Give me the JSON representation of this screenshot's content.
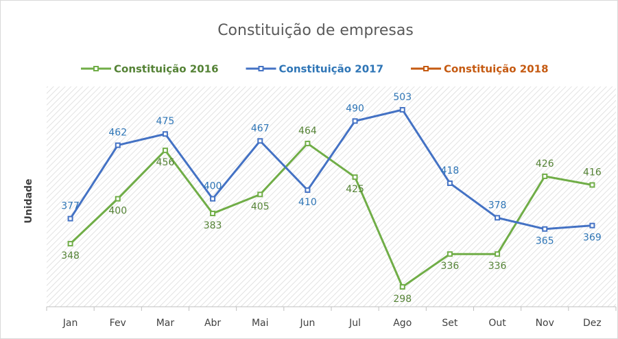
{
  "chart_data": {
    "type": "line",
    "title": "Constituição de empresas",
    "y_label": "Unidade",
    "categories": [
      "Jan",
      "Fev",
      "Mar",
      "Abr",
      "Mai",
      "Jun",
      "Jul",
      "Ago",
      "Set",
      "Out",
      "Nov",
      "Dez"
    ],
    "series": [
      {
        "name": "Constituição 2016",
        "color": "#70ad47",
        "label_color": "#548235",
        "values": [
          348,
          400,
          456,
          383,
          405,
          464,
          425,
          298,
          336,
          336,
          426,
          416
        ]
      },
      {
        "name": "Constituição 2017",
        "color": "#4472c4",
        "label_color": "#2e75b6",
        "values": [
          377,
          462,
          475,
          400,
          467,
          410,
          490,
          503,
          418,
          378,
          365,
          369
        ]
      },
      {
        "name": "Constituição 2018",
        "color": "#c55a11",
        "label_color": "#c55a11",
        "values": [
          null,
          null,
          null,
          null,
          null,
          null,
          null,
          null,
          null,
          null,
          null,
          null
        ]
      }
    ],
    "ylim": [
      275,
      530
    ],
    "legend": "top"
  }
}
